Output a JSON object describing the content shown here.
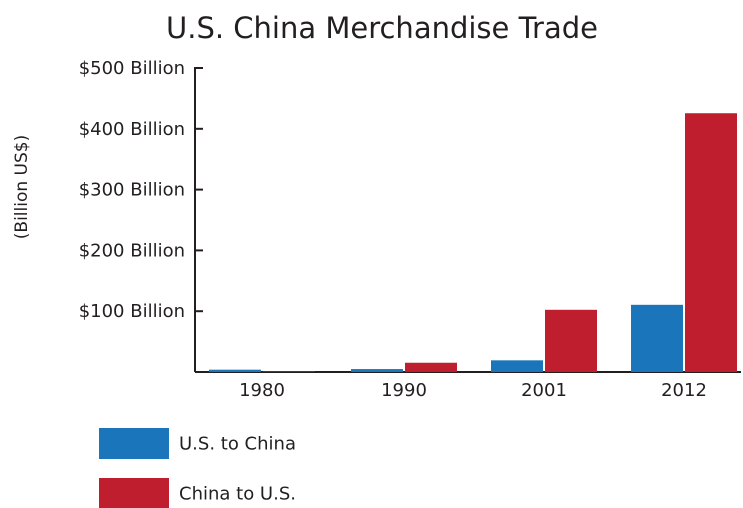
{
  "chart_data": {
    "type": "bar",
    "title": "U.S. China Merchandise Trade",
    "ylabel": "(Billion US$)",
    "xlabel": "",
    "categories": [
      "1980",
      "1990",
      "2001",
      "2012"
    ],
    "series": [
      {
        "name": "U.S. to China",
        "color": "#1a75bb",
        "values": [
          3.8,
          4.8,
          19.2,
          110.5
        ]
      },
      {
        "name": "China to U.S.",
        "color": "#be1e2d",
        "values": [
          1.1,
          15.2,
          102.3,
          425.6
        ]
      }
    ],
    "ylim": [
      0,
      500
    ],
    "yticks": [
      {
        "value": 100,
        "label": "$100 Billion"
      },
      {
        "value": 200,
        "label": "$200 Billion"
      },
      {
        "value": 300,
        "label": "$300 Billion"
      },
      {
        "value": 400,
        "label": "$400 Billion"
      },
      {
        "value": 500,
        "label": "$500 Billion"
      }
    ],
    "grid": false,
    "legend_position": "bottom-left"
  }
}
